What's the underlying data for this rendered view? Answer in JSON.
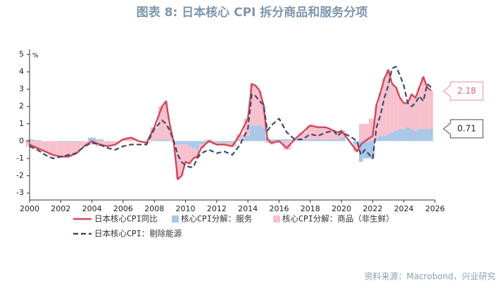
{
  "chart_data": {
    "type": "bar_line",
    "title": "图表 8:  日本核心 CPI 拆分商品和服务分项",
    "unit": "%",
    "source": "资料来源：Macrobond，兴业研究",
    "x": [
      2000.0,
      2000.5,
      2001.0,
      2001.5,
      2002.0,
      2002.5,
      2003.0,
      2003.5,
      2004.0,
      2004.5,
      2005.0,
      2005.5,
      2006.0,
      2006.5,
      2007.0,
      2007.5,
      2008.0,
      2008.5,
      2008.75,
      2009.0,
      2009.25,
      2009.5,
      2009.75,
      2010.0,
      2010.25,
      2010.5,
      2010.75,
      2011.0,
      2011.5,
      2012.0,
      2012.5,
      2013.0,
      2013.5,
      2014.0,
      2014.25,
      2014.5,
      2014.75,
      2015.0,
      2015.25,
      2015.5,
      2016.0,
      2016.5,
      2017.0,
      2017.5,
      2018.0,
      2018.5,
      2019.0,
      2019.5,
      2019.75,
      2020.0,
      2020.5,
      2021.0,
      2021.25,
      2021.5,
      2022.0,
      2022.25,
      2022.5,
      2022.75,
      2023.0,
      2023.25,
      2023.5,
      2023.75,
      2024.0,
      2024.25,
      2024.5,
      2024.75,
      2025.0,
      2025.25,
      2025.5,
      2025.75
    ],
    "series": [
      {
        "name": "日本核心CPI同比",
        "kind": "line",
        "color": "#d0485a",
        "values": [
          -0.2,
          -0.4,
          -0.6,
          -0.8,
          -0.9,
          -0.9,
          -0.7,
          -0.3,
          0.0,
          -0.2,
          -0.3,
          -0.2,
          0.1,
          0.2,
          0.0,
          -0.1,
          0.8,
          2.0,
          2.3,
          0.9,
          -0.1,
          -2.2,
          -2.0,
          -1.2,
          -1.3,
          -1.0,
          -0.9,
          -0.4,
          0.0,
          -0.2,
          -0.2,
          -0.3,
          0.4,
          1.3,
          3.3,
          3.2,
          2.9,
          2.1,
          0.1,
          -0.1,
          0.0,
          -0.4,
          0.1,
          0.5,
          0.9,
          0.8,
          0.8,
          0.6,
          0.5,
          0.6,
          0.0,
          -0.6,
          -0.2,
          0.0,
          0.3,
          2.1,
          2.8,
          3.6,
          4.1,
          3.3,
          3.1,
          2.5,
          2.2,
          2.2,
          2.7,
          2.5,
          3.1,
          3.7,
          3.1,
          2.9
        ]
      },
      {
        "name": "核心CPI分解：服务",
        "kind": "bar",
        "color": "#a9c8e8",
        "values": [
          0.1,
          0.05,
          0.0,
          0.0,
          -0.05,
          -0.05,
          -0.05,
          0.0,
          0.2,
          0.1,
          0.0,
          0.0,
          0.0,
          0.0,
          0.0,
          0.0,
          0.05,
          0.1,
          0.1,
          0.05,
          0.0,
          -0.2,
          -0.2,
          -0.2,
          -0.3,
          -0.4,
          -0.5,
          -0.2,
          -0.1,
          -0.1,
          -0.1,
          -0.1,
          0.1,
          0.3,
          0.9,
          0.9,
          0.9,
          0.8,
          0.2,
          0.1,
          0.1,
          0.1,
          0.1,
          0.1,
          0.1,
          0.1,
          0.1,
          0.1,
          0.1,
          0.2,
          0.0,
          -0.2,
          -1.2,
          -1.0,
          -1.0,
          0.2,
          0.3,
          0.3,
          0.4,
          0.5,
          0.6,
          0.7,
          0.7,
          0.8,
          0.7,
          0.6,
          0.7,
          0.7,
          0.7,
          0.71
        ]
      },
      {
        "name": "核心CPI分解：商品（非生鲜）",
        "kind": "bar",
        "color": "#f7c0cd",
        "values": [
          -0.3,
          -0.45,
          -0.6,
          -0.8,
          -0.85,
          -0.85,
          -0.65,
          -0.3,
          -0.2,
          -0.3,
          -0.3,
          -0.2,
          0.1,
          0.2,
          0.0,
          -0.1,
          0.75,
          1.9,
          2.2,
          0.85,
          -0.1,
          -2.0,
          -1.8,
          -1.0,
          -1.0,
          -0.6,
          -0.4,
          -0.2,
          0.1,
          -0.1,
          -0.1,
          -0.2,
          0.3,
          1.0,
          2.4,
          2.3,
          2.0,
          1.3,
          -0.1,
          -0.2,
          -0.1,
          -0.5,
          0.0,
          0.4,
          0.8,
          0.7,
          0.7,
          0.5,
          0.4,
          0.4,
          0.0,
          -0.4,
          1.0,
          1.0,
          1.3,
          1.9,
          2.5,
          3.3,
          3.7,
          2.8,
          2.5,
          1.8,
          1.5,
          1.4,
          2.0,
          1.9,
          2.4,
          3.0,
          2.4,
          2.18
        ]
      },
      {
        "name": "日本核心CPI：剔除能源",
        "kind": "dashed",
        "color": "#3b4a6b",
        "values": [
          -0.3,
          -0.5,
          -0.8,
          -1.0,
          -0.9,
          -0.8,
          -0.7,
          -0.3,
          -0.1,
          -0.2,
          -0.4,
          -0.5,
          -0.3,
          -0.2,
          -0.2,
          -0.2,
          0.7,
          1.2,
          1.0,
          0.6,
          0.0,
          -0.8,
          -1.2,
          -1.4,
          -1.5,
          -1.5,
          -1.0,
          -0.7,
          -0.5,
          -0.7,
          -0.6,
          -0.8,
          -0.2,
          0.7,
          2.7,
          2.6,
          2.3,
          2.1,
          0.6,
          0.9,
          1.3,
          0.5,
          0.1,
          0.1,
          0.4,
          0.3,
          0.5,
          0.6,
          0.3,
          0.5,
          0.3,
          0.0,
          -0.8,
          -0.5,
          -1.0,
          0.8,
          1.5,
          2.5,
          3.2,
          4.2,
          4.3,
          3.8,
          3.2,
          2.2,
          2.0,
          2.2,
          2.6,
          2.3,
          3.3,
          3.1
        ]
      }
    ],
    "xlim": [
      2000,
      2026
    ],
    "xticks": [
      2000,
      2002,
      2004,
      2006,
      2008,
      2010,
      2012,
      2014,
      2016,
      2018,
      2020,
      2022,
      2024,
      2026
    ],
    "ylim": [
      -3.4,
      5.3
    ],
    "yticks": [
      -3,
      -2,
      -1,
      0,
      1,
      2,
      3,
      4,
      5
    ]
  }
}
